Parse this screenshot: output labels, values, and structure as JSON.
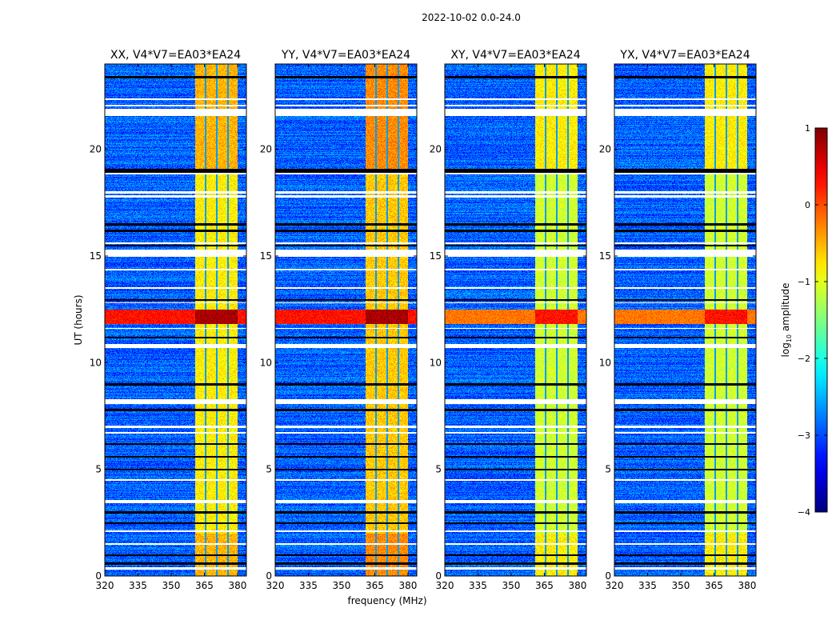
{
  "suptitle": "2022-10-02 0.0-24.0",
  "xlabel": "frequency (MHz)",
  "ylabel": "UT (hours)",
  "colorbar": {
    "label_main": "log",
    "label_sub": "10",
    "label_rest": " amplitude",
    "range": [
      -4,
      1
    ],
    "ticks": [
      "1",
      "0",
      "−1",
      "−2",
      "−3",
      "−4"
    ],
    "tick_values": [
      1,
      0,
      -1,
      -2,
      -3,
      -4
    ],
    "colormap": "jet"
  },
  "chart_data": [
    {
      "type": "heatmap",
      "title": "XX, V4*V7=EA03*EA24",
      "xlim": [
        320,
        384
      ],
      "ylim": [
        0,
        24
      ],
      "xticks": [
        320,
        335,
        350,
        365,
        380
      ],
      "xtick_labels": [
        "320",
        "335",
        "350",
        "365",
        "380"
      ],
      "yticks": [
        0,
        5,
        10,
        15,
        20
      ],
      "ytick_labels": [
        "0",
        "5",
        "10",
        "15",
        "20"
      ],
      "background_log_amp": -2.9,
      "band_mhz": [
        360.5,
        380
      ],
      "band_log_amp": -0.8,
      "band_gaps_mhz": [
        365.5,
        370.5,
        375.5
      ],
      "rfi_hours": [
        11.85,
        12.5
      ],
      "rfi_log_amp": 0.3
    },
    {
      "type": "heatmap",
      "title": "YY, V4*V7=EA03*EA24",
      "xlim": [
        320,
        384
      ],
      "ylim": [
        0,
        24
      ],
      "xticks": [
        320,
        335,
        350,
        365,
        380
      ],
      "xtick_labels": [
        "320",
        "335",
        "350",
        "365",
        "380"
      ],
      "yticks": [
        0,
        5,
        10,
        15,
        20
      ],
      "ytick_labels": [
        "0",
        "5",
        "10",
        "15",
        "20"
      ],
      "background_log_amp": -2.9,
      "band_mhz": [
        360.5,
        380
      ],
      "band_log_amp": -0.6,
      "band_gaps_mhz": [
        365.5,
        370.5,
        375.5
      ],
      "rfi_hours": [
        11.85,
        12.5
      ],
      "rfi_log_amp": 0.3
    },
    {
      "type": "heatmap",
      "title": "XY, V4*V7=EA03*EA24",
      "xlim": [
        320,
        384
      ],
      "ylim": [
        0,
        24
      ],
      "xticks": [
        320,
        335,
        350,
        365,
        380
      ],
      "xtick_labels": [
        "320",
        "335",
        "350",
        "365",
        "380"
      ],
      "yticks": [
        0,
        5,
        10,
        15,
        20
      ],
      "ytick_labels": [
        "0",
        "5",
        "10",
        "15",
        "20"
      ],
      "background_log_amp": -2.9,
      "band_mhz": [
        360.5,
        380
      ],
      "band_log_amp": -1.1,
      "band_gaps_mhz": [
        365.5,
        370.5,
        375.5
      ],
      "rfi_hours": [
        11.85,
        12.5
      ],
      "rfi_log_amp": -0.2
    },
    {
      "type": "heatmap",
      "title": "YX, V4*V7=EA03*EA24",
      "xlim": [
        320,
        384
      ],
      "ylim": [
        0,
        24
      ],
      "xticks": [
        320,
        335,
        350,
        365,
        380
      ],
      "xtick_labels": [
        "320",
        "335",
        "350",
        "365",
        "380"
      ],
      "yticks": [
        0,
        5,
        10,
        15,
        20
      ],
      "ytick_labels": [
        "0",
        "5",
        "10",
        "15",
        "20"
      ],
      "background_log_amp": -2.9,
      "band_mhz": [
        360.5,
        380
      ],
      "band_log_amp": -1.1,
      "band_gaps_mhz": [
        365.5,
        370.5,
        375.5
      ],
      "rfi_hours": [
        11.85,
        12.5
      ],
      "rfi_log_amp": -0.2
    }
  ],
  "flagged_hours": [
    [
      0.3,
      0.45
    ],
    [
      1.5,
      1.55
    ],
    [
      2.1,
      2.15
    ],
    [
      3.45,
      3.6
    ],
    [
      4.5,
      4.55
    ],
    [
      6.7,
      6.75
    ],
    [
      6.95,
      7.05
    ],
    [
      8.1,
      8.3
    ],
    [
      10.7,
      10.9
    ],
    [
      11.6,
      11.65
    ],
    [
      12.8,
      12.85
    ],
    [
      13.5,
      13.55
    ],
    [
      14.35,
      14.4
    ],
    [
      15.0,
      15.3
    ],
    [
      15.6,
      15.65
    ],
    [
      17.75,
      17.85
    ],
    [
      17.95,
      18.05
    ],
    [
      18.85,
      18.9
    ],
    [
      21.6,
      21.9
    ],
    [
      22.05,
      22.1
    ],
    [
      22.35,
      22.4
    ]
  ],
  "dead_hours": [
    0.6,
    1.0,
    2.5,
    3.0,
    5.0,
    5.6,
    6.2,
    7.8,
    9.0,
    11.2,
    12.95,
    15.5,
    16.2,
    16.5,
    18.95,
    19.05,
    23.4
  ]
}
